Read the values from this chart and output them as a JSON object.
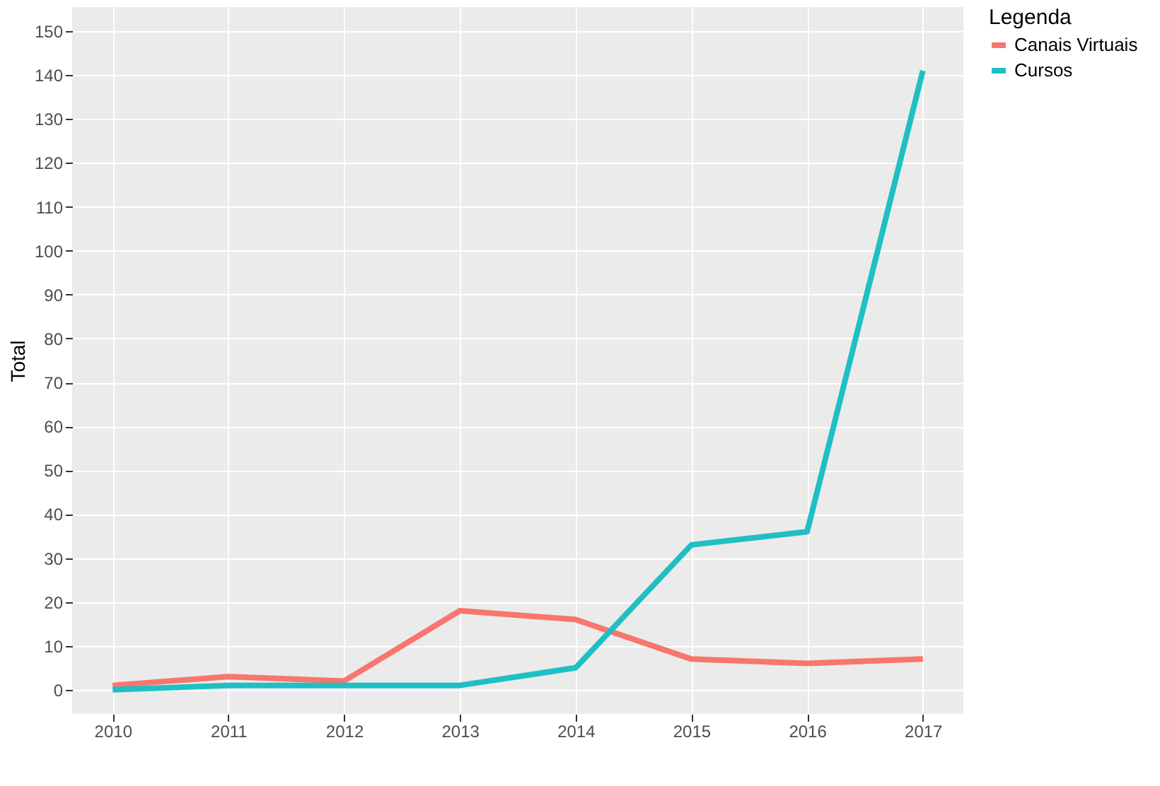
{
  "chart_data": {
    "type": "line",
    "ylabel": "Total",
    "legend_title": "Legenda",
    "x": [
      2010,
      2011,
      2012,
      2013,
      2014,
      2015,
      2016,
      2017
    ],
    "series": [
      {
        "name": "Canais Virtuais",
        "color": "#f8766d",
        "values": [
          1,
          3,
          2,
          18,
          16,
          7,
          6,
          7
        ]
      },
      {
        "name": "Cursos",
        "color": "#1fbfc4",
        "values": [
          0,
          1,
          1,
          1,
          5,
          33,
          36,
          141
        ]
      }
    ],
    "xlim": [
      2009.65,
      2017.35
    ],
    "xticks": [
      2010,
      2011,
      2012,
      2013,
      2014,
      2015,
      2016,
      2017
    ],
    "ylim": [
      -5.5,
      155.5
    ],
    "yticks": [
      0,
      10,
      20,
      30,
      40,
      50,
      60,
      70,
      80,
      90,
      100,
      110,
      120,
      130,
      140,
      150
    ],
    "grid": true,
    "legend": "right",
    "marker": "none",
    "line_style": "solid"
  }
}
